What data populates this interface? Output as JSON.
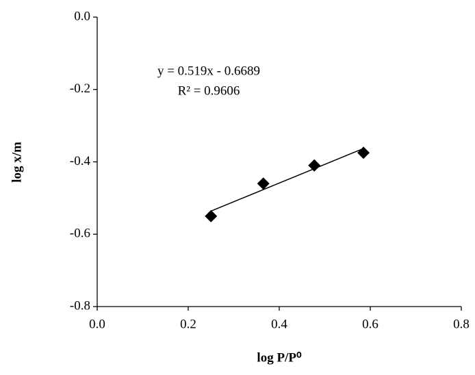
{
  "chart_data": {
    "type": "scatter",
    "x_label": "log P/P⁰",
    "y_label": "log x/m",
    "annotations": [
      "y = 0.519x - 0.6689",
      "R² = 0.9606"
    ],
    "x": [
      0.25,
      0.365,
      0.477,
      0.585
    ],
    "values": [
      -0.55,
      -0.46,
      -0.41,
      -0.375
    ],
    "color": "#000000",
    "trendline": true,
    "xlim": [
      0,
      0.8
    ],
    "xticks": [
      {
        "value": 0,
        "label": "0.0"
      },
      0.2,
      0.4,
      0.6,
      0.8
    ],
    "ylim": [
      -0.8,
      0
    ],
    "yticks": [
      {
        "value": 0,
        "label": "0.0"
      },
      -0.2,
      -0.4,
      -0.6,
      -0.8
    ],
    "grid": false
  }
}
